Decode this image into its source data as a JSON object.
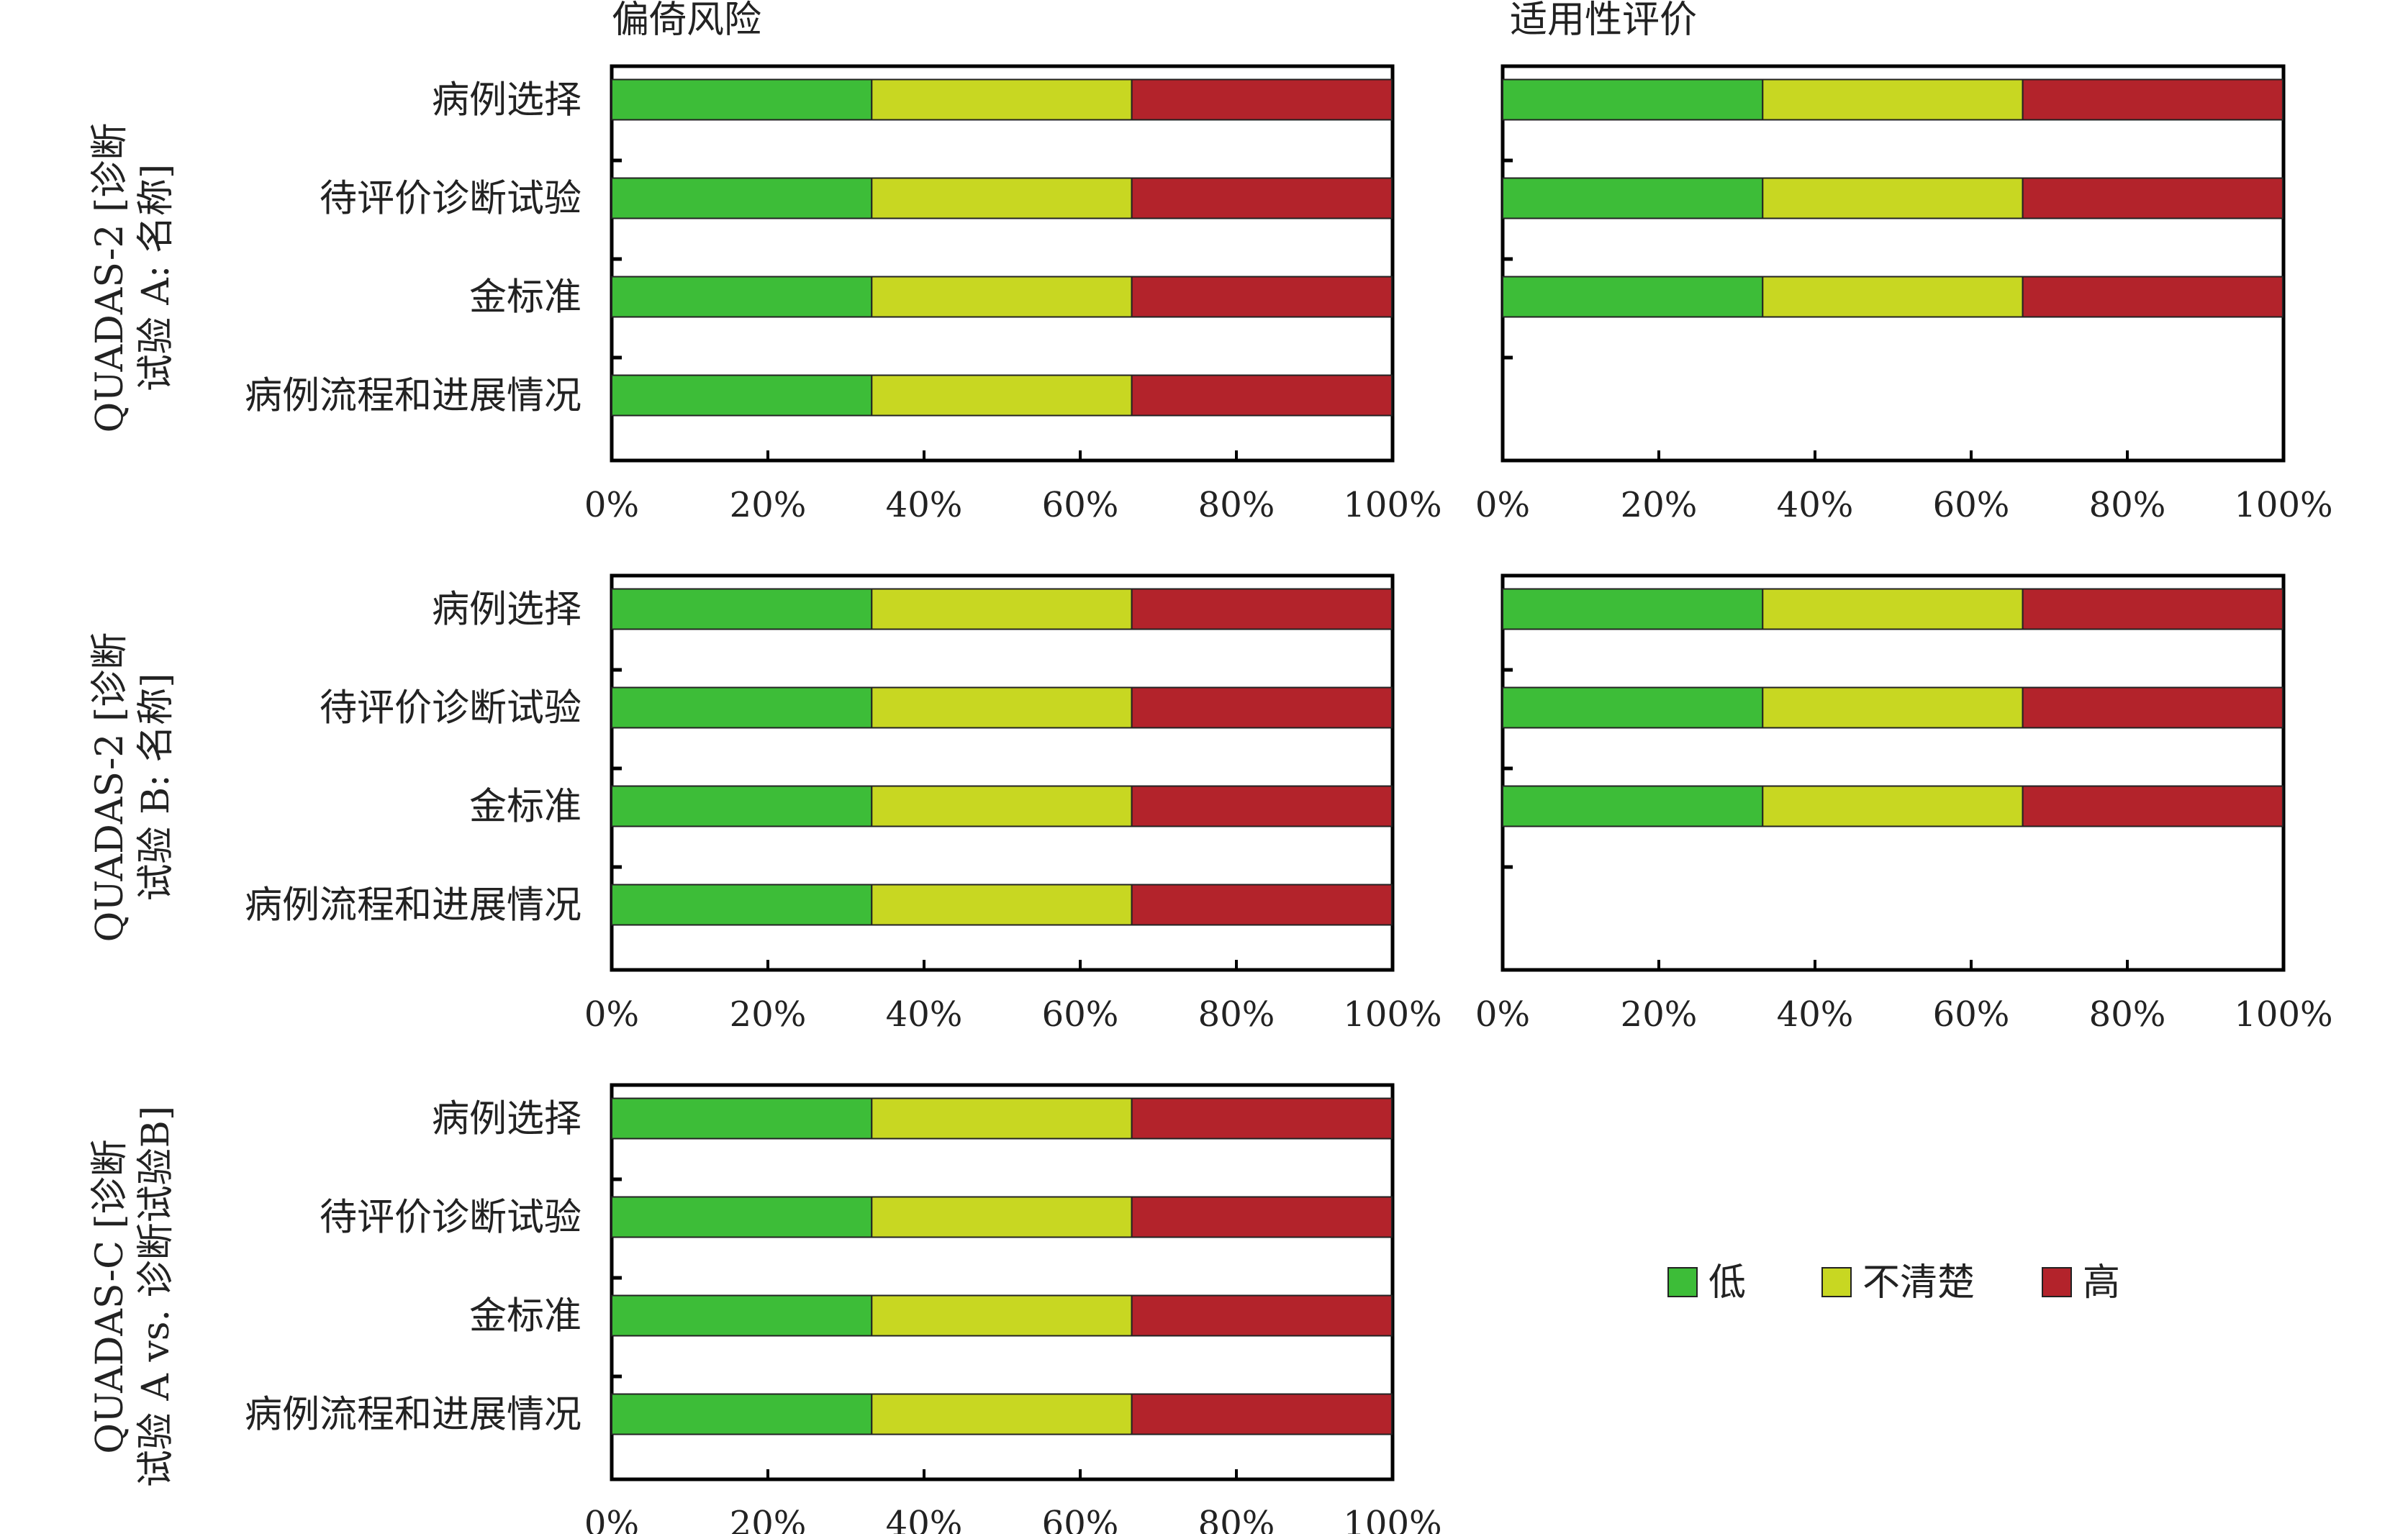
{
  "colors": {
    "low": "#3dbd38",
    "unclear": "#c8d722",
    "high": "#b3232b",
    "axis": "#000000"
  },
  "chart_data": [
    {
      "type": "bar",
      "orientation": "horizontal",
      "stacked": true,
      "title": "偏倚风险",
      "ylabel_lines": [
        "QUADAS-2 [诊断",
        "试验 A: 名称]"
      ],
      "categories": [
        "病例选择",
        "待评价诊断试验",
        "金标准",
        "病例流程和进展情况"
      ],
      "series": [
        {
          "name": "低",
          "values": [
            33.3,
            33.3,
            33.3,
            33.3
          ]
        },
        {
          "name": "不清楚",
          "values": [
            33.3,
            33.3,
            33.3,
            33.3
          ]
        },
        {
          "name": "高",
          "values": [
            33.3,
            33.3,
            33.3,
            33.3
          ]
        }
      ],
      "xticks": [
        "0%",
        "20%",
        "40%",
        "60%",
        "80%",
        "100%"
      ],
      "xlim": [
        0,
        100
      ]
    },
    {
      "type": "bar",
      "orientation": "horizontal",
      "stacked": true,
      "title": "适用性评价",
      "categories": [
        "病例选择",
        "待评价诊断试验",
        "金标准"
      ],
      "series": [
        {
          "name": "低",
          "values": [
            33.3,
            33.3,
            33.3
          ]
        },
        {
          "name": "不清楚",
          "values": [
            33.3,
            33.3,
            33.3
          ]
        },
        {
          "name": "高",
          "values": [
            33.3,
            33.3,
            33.3
          ]
        }
      ],
      "xticks": [
        "0%",
        "20%",
        "40%",
        "60%",
        "80%",
        "100%"
      ],
      "xlim": [
        0,
        100
      ]
    },
    {
      "type": "bar",
      "orientation": "horizontal",
      "stacked": true,
      "ylabel_lines": [
        "QUADAS-2 [诊断",
        "试验 B: 名称]"
      ],
      "categories": [
        "病例选择",
        "待评价诊断试验",
        "金标准",
        "病例流程和进展情况"
      ],
      "series": [
        {
          "name": "低",
          "values": [
            33.3,
            33.3,
            33.3,
            33.3
          ]
        },
        {
          "name": "不清楚",
          "values": [
            33.3,
            33.3,
            33.3,
            33.3
          ]
        },
        {
          "name": "高",
          "values": [
            33.3,
            33.3,
            33.3,
            33.3
          ]
        }
      ],
      "xticks": [
        "0%",
        "20%",
        "40%",
        "60%",
        "80%",
        "100%"
      ],
      "xlim": [
        0,
        100
      ]
    },
    {
      "type": "bar",
      "orientation": "horizontal",
      "stacked": true,
      "categories": [
        "病例选择",
        "待评价诊断试验",
        "金标准"
      ],
      "series": [
        {
          "name": "低",
          "values": [
            33.3,
            33.3,
            33.3
          ]
        },
        {
          "name": "不清楚",
          "values": [
            33.3,
            33.3,
            33.3
          ]
        },
        {
          "name": "高",
          "values": [
            33.3,
            33.3,
            33.3
          ]
        }
      ],
      "xticks": [
        "0%",
        "20%",
        "40%",
        "60%",
        "80%",
        "100%"
      ],
      "xlim": [
        0,
        100
      ]
    },
    {
      "type": "bar",
      "orientation": "horizontal",
      "stacked": true,
      "ylabel_lines": [
        "QUADAS-C [诊断",
        "试验 A vs. 诊断试验B]"
      ],
      "categories": [
        "病例选择",
        "待评价诊断试验",
        "金标准",
        "病例流程和进展情况"
      ],
      "series": [
        {
          "name": "低",
          "values": [
            33.3,
            33.3,
            33.3,
            33.3
          ]
        },
        {
          "name": "不清楚",
          "values": [
            33.3,
            33.3,
            33.3,
            33.3
          ]
        },
        {
          "name": "高",
          "values": [
            33.3,
            33.3,
            33.3,
            33.3
          ]
        }
      ],
      "xticks": [
        "0%",
        "20%",
        "40%",
        "60%",
        "80%",
        "100%"
      ],
      "xlim": [
        0,
        100
      ]
    }
  ],
  "legend": {
    "items": [
      "低",
      "不清楚",
      "高"
    ],
    "placement": "bottom-right"
  }
}
